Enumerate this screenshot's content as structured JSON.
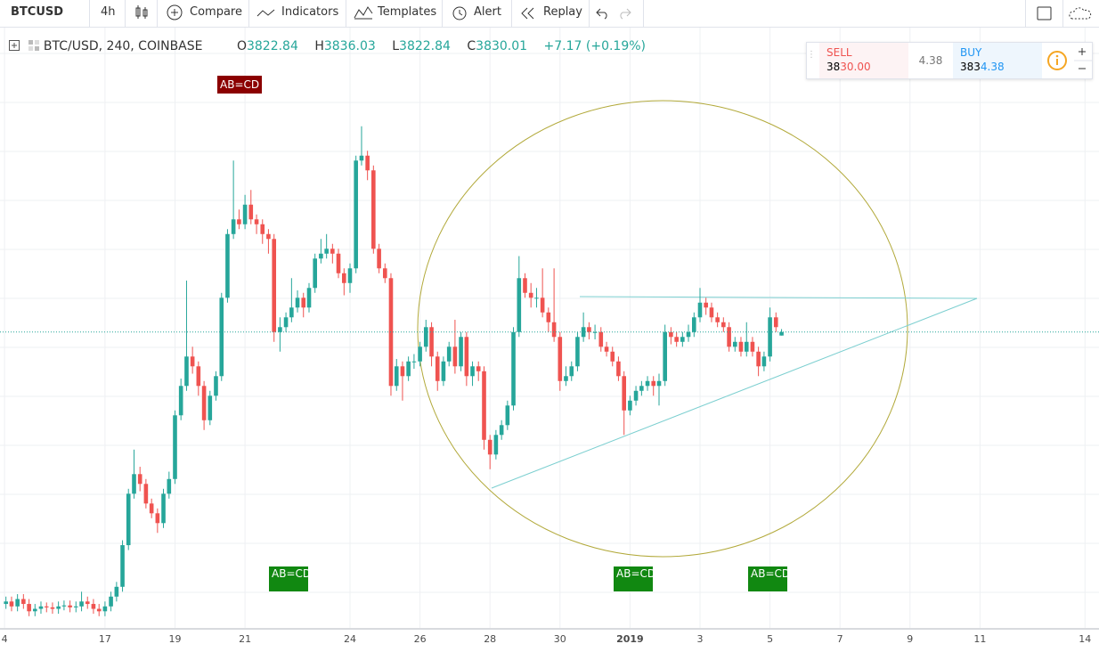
{
  "toolbar": {
    "symbol": "BTCUSD",
    "interval": "4h",
    "compare": "Compare",
    "indicators": "Indicators",
    "templates": "Templates",
    "alert": "Alert",
    "replay": "Replay"
  },
  "legend": {
    "symbol": "BTC/USD, 240, COINBASE",
    "o_label": "O",
    "open": "3822.84",
    "h_label": "H",
    "high": "3836.03",
    "l_label": "L",
    "low": "3822.84",
    "c_label": "C",
    "close": "3830.01",
    "change": "+7.17 (+0.19%)"
  },
  "trade_widget": {
    "sell_label": "SELL",
    "sell_head": "38",
    "sell_tail": "30.00",
    "spread": "4.38",
    "buy_label": "BUY",
    "buy_head": "383",
    "buy_tail": "4.38"
  },
  "annotations": [
    "AB=CD",
    "AB=CD",
    "AB=CD",
    "AB=CD"
  ],
  "chart_data": {
    "type": "candlestick",
    "up_color": "#26a69a",
    "down_color": "#ef5350",
    "grid": true,
    "xlim": [
      14,
      45.4
    ],
    "ylim": [
      3226,
      4435
    ],
    "xticks": [
      {
        "value": 14.13,
        "label": "4"
      },
      17,
      19,
      21,
      24,
      26,
      28,
      30,
      {
        "value": 32,
        "label": "2019"
      },
      {
        "value": 34,
        "label": "3"
      },
      {
        "value": 36,
        "label": "5"
      },
      {
        "value": 38,
        "label": "7"
      },
      {
        "value": 40,
        "label": "9"
      },
      {
        "value": 42,
        "label": "11"
      },
      {
        "value": 45,
        "label": "14"
      }
    ],
    "x": [
      14.17,
      14.33,
      14.5,
      14.67,
      14.83,
      15,
      15.17,
      15.33,
      15.5,
      15.67,
      15.83,
      16,
      16.17,
      16.33,
      16.5,
      16.67,
      16.83,
      17,
      17.17,
      17.33,
      17.5,
      17.67,
      17.83,
      18,
      18.17,
      18.33,
      18.5,
      18.67,
      18.83,
      19,
      19.17,
      19.33,
      19.5,
      19.67,
      19.83,
      20,
      20.17,
      20.33,
      20.5,
      20.67,
      20.83,
      21,
      21.17,
      21.33,
      21.5,
      21.67,
      21.83,
      22,
      22.17,
      22.33,
      22.5,
      22.67,
      22.83,
      23,
      23.17,
      23.33,
      23.5,
      23.67,
      23.83,
      24,
      24.17,
      24.33,
      24.5,
      24.67,
      24.83,
      25,
      25.17,
      25.33,
      25.5,
      25.67,
      25.83,
      26,
      26.17,
      26.33,
      26.5,
      26.67,
      26.83,
      27,
      27.17,
      27.33,
      27.5,
      27.67,
      27.83,
      28,
      28.17,
      28.33,
      28.5,
      28.67,
      28.83,
      29,
      29.17,
      29.33,
      29.5,
      29.67,
      29.83,
      30,
      30.17,
      30.33,
      30.5,
      30.67,
      30.83,
      31,
      31.17,
      31.33,
      31.5,
      31.67,
      31.83,
      32,
      32.17,
      32.33,
      32.5,
      32.67,
      32.83,
      33,
      33.17,
      33.33,
      33.5,
      33.67,
      33.83,
      34,
      34.17,
      34.33,
      34.5,
      34.67,
      34.83,
      35,
      35.17,
      35.33,
      35.5,
      35.67,
      35.83,
      36,
      36.17,
      36.33
    ],
    "open": [
      3275,
      3280,
      3270,
      3285,
      3275,
      3260,
      3265,
      3270,
      3268,
      3265,
      3270,
      3272,
      3268,
      3270,
      3280,
      3275,
      3265,
      3260,
      3270,
      3290,
      3310,
      3395,
      3500,
      3540,
      3520,
      3480,
      3460,
      3440,
      3500,
      3530,
      3660,
      3720,
      3780,
      3760,
      3720,
      3650,
      3700,
      3740,
      3900,
      4030,
      4060,
      4050,
      4090,
      4060,
      4050,
      4030,
      4020,
      3830,
      3840,
      3860,
      3880,
      3900,
      3880,
      3920,
      3980,
      3990,
      4000,
      3990,
      3950,
      3930,
      3960,
      4180,
      4190,
      4160,
      4000,
      3960,
      3940,
      3720,
      3760,
      3740,
      3770,
      3770,
      3800,
      3840,
      3780,
      3730,
      3770,
      3800,
      3760,
      3820,
      3740,
      3760,
      3750,
      3610,
      3580,
      3620,
      3640,
      3680,
      3830,
      3940,
      3910,
      3900,
      3900,
      3870,
      3850,
      3820,
      3730,
      3740,
      3760,
      3820,
      3840,
      3830,
      3830,
      3800,
      3790,
      3770,
      3740,
      3670,
      3690,
      3710,
      3720,
      3730,
      3720,
      3730,
      3830,
      3820,
      3810,
      3820,
      3830,
      3860,
      3890,
      3880,
      3860,
      3850,
      3840,
      3800,
      3810,
      3790,
      3810,
      3790,
      3760,
      3780,
      3860,
      3822.84
    ],
    "high": [
      3290,
      3290,
      3295,
      3295,
      3285,
      3275,
      3280,
      3278,
      3278,
      3280,
      3282,
      3282,
      3280,
      3300,
      3290,
      3285,
      3275,
      3280,
      3300,
      3320,
      3405,
      3510,
      3590,
      3555,
      3530,
      3490,
      3470,
      3510,
      3545,
      3670,
      3735,
      3935,
      3800,
      3770,
      3730,
      3710,
      3750,
      3910,
      4040,
      4180,
      4080,
      4110,
      4120,
      4070,
      4060,
      4040,
      4030,
      3860,
      3870,
      3940,
      3915,
      3910,
      3930,
      3990,
      4020,
      4030,
      4010,
      4000,
      3960,
      3970,
      4190,
      4250,
      4200,
      4170,
      4010,
      3970,
      3950,
      3775,
      3770,
      3780,
      3785,
      3810,
      3855,
      3850,
      3790,
      3780,
      3810,
      3855,
      3830,
      3830,
      3770,
      3770,
      3760,
      3620,
      3630,
      3650,
      3690,
      3840,
      3985,
      3950,
      3930,
      3920,
      3960,
      3880,
      3960,
      3830,
      3760,
      3770,
      3830,
      3870,
      3850,
      3845,
      3840,
      3810,
      3800,
      3780,
      3750,
      3700,
      3720,
      3730,
      3740,
      3740,
      3745,
      3845,
      3840,
      3830,
      3830,
      3845,
      3870,
      3920,
      3900,
      3890,
      3870,
      3860,
      3850,
      3820,
      3820,
      3850,
      3820,
      3800,
      3790,
      3880,
      3870,
      3836.03
    ],
    "low": [
      3265,
      3260,
      3260,
      3265,
      3250,
      3250,
      3255,
      3258,
      3255,
      3255,
      3262,
      3258,
      3258,
      3260,
      3265,
      3255,
      3250,
      3250,
      3260,
      3280,
      3300,
      3385,
      3490,
      3505,
      3470,
      3450,
      3420,
      3430,
      3490,
      3520,
      3650,
      3710,
      3745,
      3700,
      3630,
      3640,
      3690,
      3730,
      3890,
      4020,
      4040,
      4040,
      4050,
      4030,
      4010,
      3990,
      3810,
      3790,
      3830,
      3850,
      3870,
      3860,
      3870,
      3910,
      3970,
      3980,
      3970,
      3940,
      3905,
      3910,
      3950,
      4170,
      4140,
      3990,
      3950,
      3930,
      3700,
      3710,
      3690,
      3730,
      3755,
      3760,
      3790,
      3760,
      3710,
      3720,
      3760,
      3745,
      3750,
      3720,
      3720,
      3730,
      3590,
      3550,
      3570,
      3610,
      3630,
      3670,
      3820,
      3900,
      3880,
      3880,
      3860,
      3830,
      3810,
      3710,
      3720,
      3730,
      3750,
      3810,
      3815,
      3815,
      3790,
      3780,
      3760,
      3730,
      3620,
      3660,
      3680,
      3700,
      3710,
      3700,
      3680,
      3720,
      3805,
      3800,
      3800,
      3810,
      3820,
      3850,
      3865,
      3850,
      3840,
      3830,
      3790,
      3790,
      3780,
      3780,
      3780,
      3740,
      3750,
      3770,
      3830,
      3822.84
    ],
    "close": [
      3280,
      3270,
      3285,
      3275,
      3260,
      3265,
      3270,
      3268,
      3265,
      3270,
      3272,
      3268,
      3270,
      3280,
      3275,
      3265,
      3260,
      3270,
      3290,
      3310,
      3395,
      3500,
      3540,
      3520,
      3480,
      3460,
      3440,
      3500,
      3530,
      3660,
      3720,
      3780,
      3760,
      3720,
      3650,
      3700,
      3740,
      3900,
      4030,
      4060,
      4050,
      4090,
      4060,
      4050,
      4030,
      4020,
      3830,
      3840,
      3860,
      3880,
      3900,
      3880,
      3920,
      3980,
      3990,
      4000,
      3990,
      3950,
      3930,
      3960,
      4180,
      4190,
      4160,
      4000,
      3960,
      3940,
      3720,
      3760,
      3740,
      3770,
      3770,
      3800,
      3840,
      3780,
      3730,
      3770,
      3800,
      3760,
      3820,
      3740,
      3760,
      3750,
      3610,
      3580,
      3620,
      3640,
      3680,
      3830,
      3940,
      3910,
      3900,
      3900,
      3870,
      3850,
      3820,
      3730,
      3740,
      3760,
      3820,
      3840,
      3830,
      3830,
      3800,
      3790,
      3770,
      3740,
      3670,
      3690,
      3710,
      3720,
      3730,
      3720,
      3730,
      3830,
      3820,
      3810,
      3820,
      3830,
      3860,
      3890,
      3880,
      3860,
      3850,
      3840,
      3800,
      3810,
      3790,
      3810,
      3790,
      3760,
      3780,
      3860,
      3840,
      3830.01
    ]
  }
}
